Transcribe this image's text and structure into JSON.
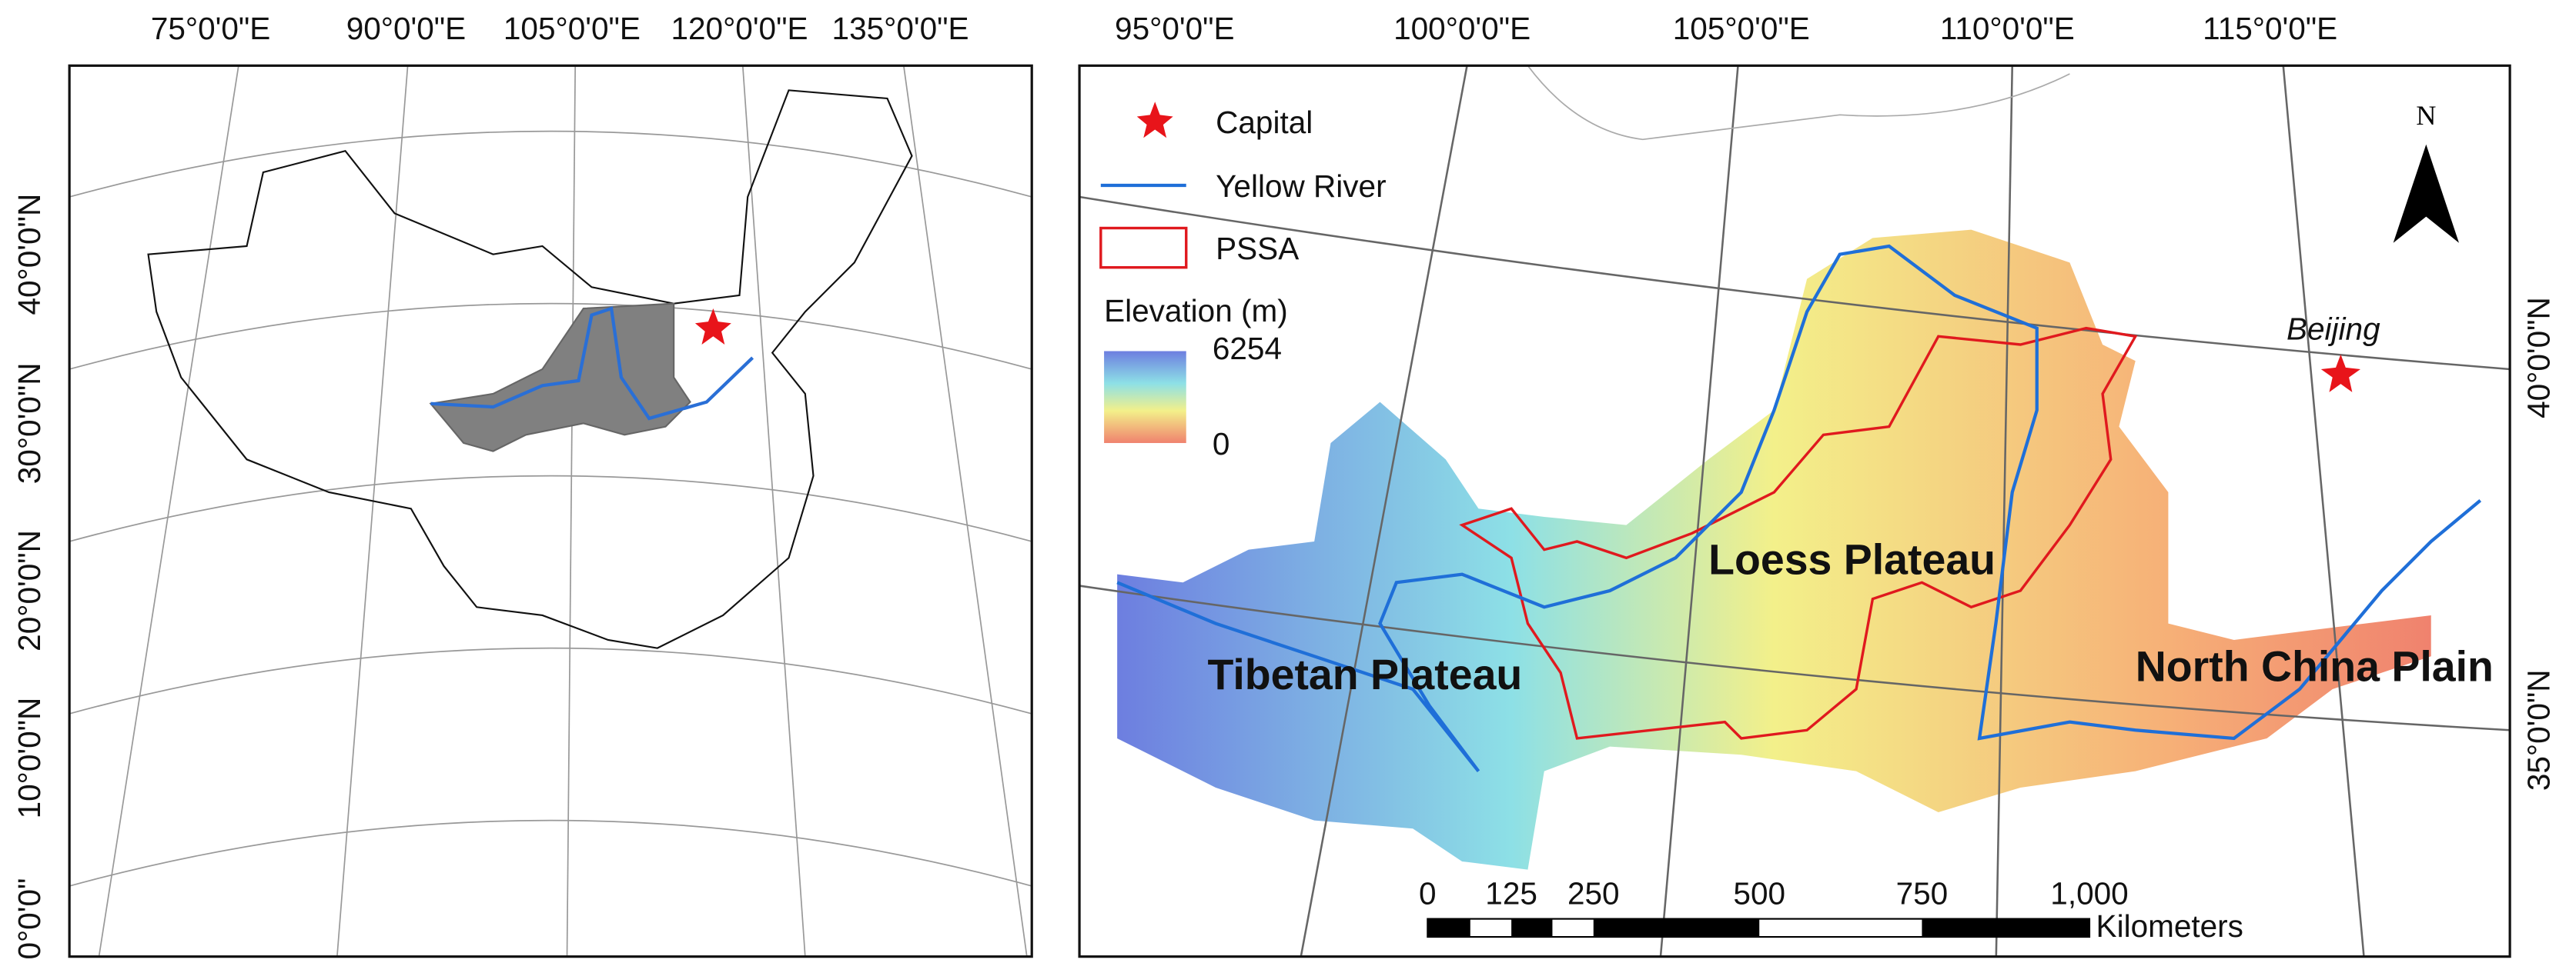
{
  "left_map": {
    "lon_labels": [
      "75°0'0\"E",
      "90°0'0\"E",
      "105°0'0\"E",
      "120°0'0\"E",
      "135°0'0\"E"
    ],
    "lat_labels": [
      "40°0'0\"N",
      "30°0'0\"N",
      "20°0'0\"N",
      "10°0'0\"N",
      "0°0'0\""
    ]
  },
  "right_map": {
    "lon_labels": [
      "95°0'0\"E",
      "100°0'0\"E",
      "105°0'0\"E",
      "110°0'0\"E",
      "115°0'0\"E"
    ],
    "lat_labels": [
      "40°0'0\"N",
      "35°0'0\"N"
    ],
    "north": "N",
    "legend": {
      "capital": "Capital",
      "river": "Yellow River",
      "pssa": "PSSA",
      "elevation_title": "Elevation (m)",
      "elevation_max": "6254",
      "elevation_min": "0"
    },
    "place_labels": {
      "beijing": "Beijing",
      "loess": "Loess Plateau",
      "tibetan": "Tibetan Plateau",
      "north_china": "North China Plain"
    },
    "scale_bar": {
      "ticks": [
        "0",
        "125",
        "250",
        "500",
        "750",
        "1,000"
      ],
      "unit": "Kilometers"
    }
  }
}
